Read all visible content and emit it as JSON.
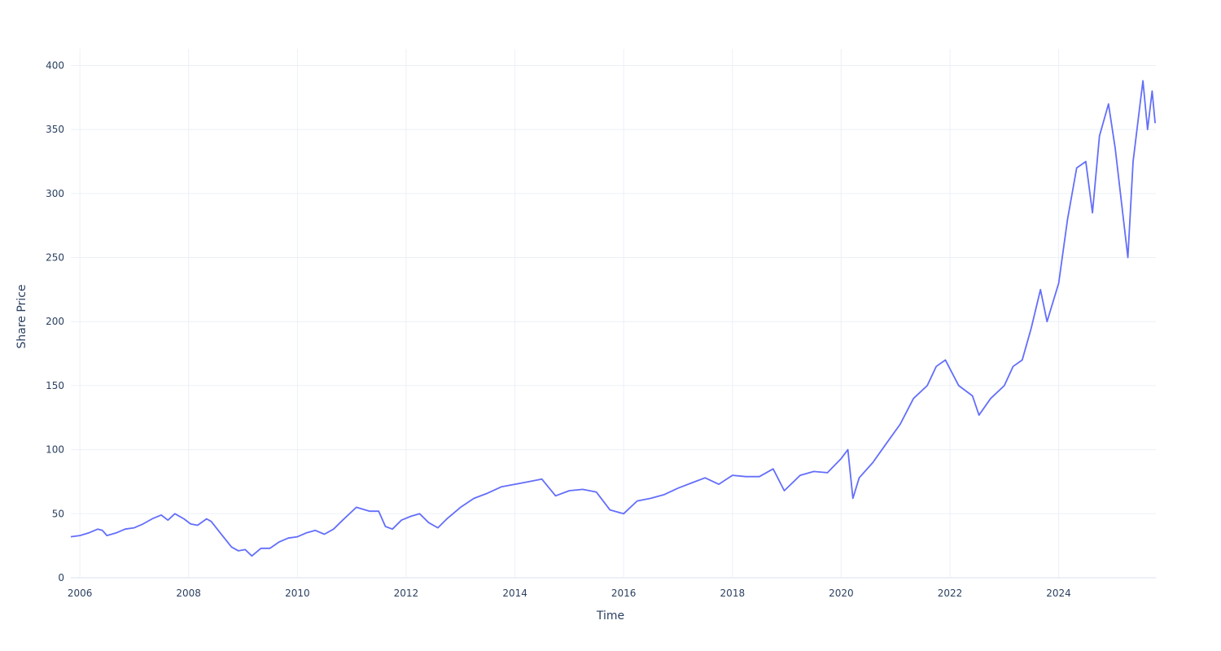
{
  "chart_data": {
    "type": "line",
    "xlabel": "Time",
    "ylabel": "Share Price",
    "xlim": [
      "2005-11-01",
      "2025-10-15"
    ],
    "ylim": [
      0,
      413
    ],
    "x_ticks": [
      "2006",
      "2008",
      "2010",
      "2012",
      "2014",
      "2016",
      "2018",
      "2020",
      "2022",
      "2024"
    ],
    "y_ticks": [
      0,
      50,
      100,
      150,
      200,
      250,
      300,
      350,
      400
    ],
    "grid": true,
    "line_color": "#636efa",
    "series": [
      {
        "points": [
          [
            "2005-11-01",
            32
          ],
          [
            "2006-01-01",
            33
          ],
          [
            "2006-03-01",
            35
          ],
          [
            "2006-05-01",
            38
          ],
          [
            "2006-06-01",
            37
          ],
          [
            "2006-07-01",
            33
          ],
          [
            "2006-09-01",
            35
          ],
          [
            "2006-11-01",
            38
          ],
          [
            "2007-01-01",
            39
          ],
          [
            "2007-03-01",
            42
          ],
          [
            "2007-05-01",
            46
          ],
          [
            "2007-07-01",
            49
          ],
          [
            "2007-08-15",
            45
          ],
          [
            "2007-10-01",
            50
          ],
          [
            "2007-12-01",
            46
          ],
          [
            "2008-01-15",
            42
          ],
          [
            "2008-03-01",
            41
          ],
          [
            "2008-05-01",
            46
          ],
          [
            "2008-06-01",
            44
          ],
          [
            "2008-08-01",
            35
          ],
          [
            "2008-10-15",
            24
          ],
          [
            "2008-12-01",
            21
          ],
          [
            "2009-01-15",
            22
          ],
          [
            "2009-03-01",
            17
          ],
          [
            "2009-05-01",
            23
          ],
          [
            "2009-07-01",
            23
          ],
          [
            "2009-09-01",
            28
          ],
          [
            "2009-11-01",
            31
          ],
          [
            "2010-01-01",
            32
          ],
          [
            "2010-03-01",
            35
          ],
          [
            "2010-05-01",
            37
          ],
          [
            "2010-07-01",
            34
          ],
          [
            "2010-09-01",
            38
          ],
          [
            "2010-11-01",
            45
          ],
          [
            "2011-02-01",
            55
          ],
          [
            "2011-05-01",
            52
          ],
          [
            "2011-07-01",
            52
          ],
          [
            "2011-08-15",
            40
          ],
          [
            "2011-10-01",
            38
          ],
          [
            "2011-12-01",
            45
          ],
          [
            "2012-02-01",
            48
          ],
          [
            "2012-04-01",
            50
          ],
          [
            "2012-06-01",
            43
          ],
          [
            "2012-08-01",
            39
          ],
          [
            "2012-10-01",
            46
          ],
          [
            "2013-01-01",
            55
          ],
          [
            "2013-04-01",
            62
          ],
          [
            "2013-07-01",
            66
          ],
          [
            "2013-10-01",
            71
          ],
          [
            "2014-01-01",
            73
          ],
          [
            "2014-04-01",
            75
          ],
          [
            "2014-07-01",
            77
          ],
          [
            "2014-10-01",
            64
          ],
          [
            "2015-01-01",
            68
          ],
          [
            "2015-04-01",
            69
          ],
          [
            "2015-07-01",
            67
          ],
          [
            "2015-10-01",
            53
          ],
          [
            "2016-01-01",
            50
          ],
          [
            "2016-04-01",
            60
          ],
          [
            "2016-07-01",
            62
          ],
          [
            "2016-10-01",
            65
          ],
          [
            "2017-01-01",
            70
          ],
          [
            "2017-04-01",
            74
          ],
          [
            "2017-07-01",
            78
          ],
          [
            "2017-10-01",
            73
          ],
          [
            "2018-01-01",
            80
          ],
          [
            "2018-04-01",
            79
          ],
          [
            "2018-07-01",
            79
          ],
          [
            "2018-10-01",
            85
          ],
          [
            "2018-12-15",
            68
          ],
          [
            "2019-04-01",
            80
          ],
          [
            "2019-07-01",
            83
          ],
          [
            "2019-10-01",
            82
          ],
          [
            "2020-01-01",
            93
          ],
          [
            "2020-02-15",
            100
          ],
          [
            "2020-03-20",
            62
          ],
          [
            "2020-05-01",
            78
          ],
          [
            "2020-08-01",
            90
          ],
          [
            "2020-11-01",
            105
          ],
          [
            "2021-02-01",
            120
          ],
          [
            "2021-05-01",
            140
          ],
          [
            "2021-08-01",
            150
          ],
          [
            "2021-10-01",
            165
          ],
          [
            "2021-12-01",
            170
          ],
          [
            "2022-03-01",
            150
          ],
          [
            "2022-06-01",
            142
          ],
          [
            "2022-07-15",
            127
          ],
          [
            "2022-10-01",
            140
          ],
          [
            "2023-01-01",
            150
          ],
          [
            "2023-03-01",
            165
          ],
          [
            "2023-05-01",
            170
          ],
          [
            "2023-07-01",
            195
          ],
          [
            "2023-09-01",
            225
          ],
          [
            "2023-10-15",
            200
          ],
          [
            "2024-01-01",
            230
          ],
          [
            "2024-03-01",
            280
          ],
          [
            "2024-05-01",
            320
          ],
          [
            "2024-07-01",
            325
          ],
          [
            "2024-08-15",
            285
          ],
          [
            "2024-10-01",
            345
          ],
          [
            "2024-12-01",
            370
          ],
          [
            "2025-01-15",
            335
          ],
          [
            "2025-03-01",
            290
          ],
          [
            "2025-04-10",
            250
          ],
          [
            "2025-05-15",
            325
          ],
          [
            "2025-07-01",
            370
          ],
          [
            "2025-07-20",
            388
          ],
          [
            "2025-08-20",
            350
          ],
          [
            "2025-09-20",
            380
          ],
          [
            "2025-10-10",
            355
          ]
        ]
      }
    ]
  }
}
